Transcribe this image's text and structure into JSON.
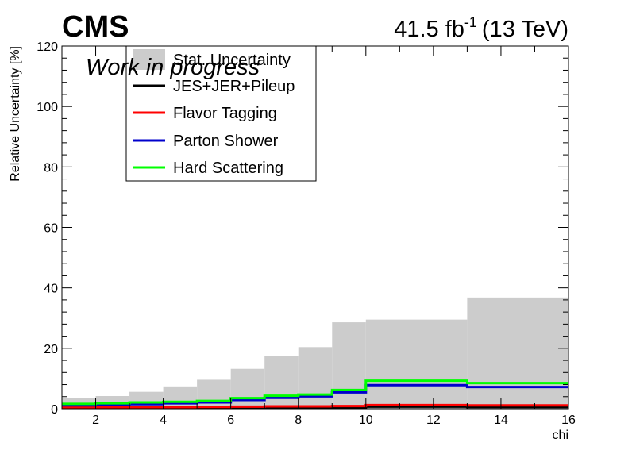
{
  "header": {
    "experiment": "CMS",
    "lumi_value": "41.5 fb",
    "lumi_exp": "-1",
    "energy": "(13 TeV)",
    "status": "Work in progress"
  },
  "legend": {
    "items": [
      {
        "label": "Stat. Uncertainty",
        "color": "#cccccc",
        "kind": "box"
      },
      {
        "label": "JES+JER+Pileup",
        "color": "#000000",
        "kind": "line"
      },
      {
        "label": "Flavor Tagging",
        "color": "#ff0000",
        "kind": "line"
      },
      {
        "label": "Parton Shower",
        "color": "#0000cc",
        "kind": "line"
      },
      {
        "label": "Hard Scattering",
        "color": "#00ff00",
        "kind": "line"
      }
    ]
  },
  "chart_data": {
    "type": "area",
    "xlabel": "chi",
    "ylabel": "Relative Uncertainty [%]",
    "xlim": [
      1,
      16
    ],
    "ylim": [
      0,
      120
    ],
    "x_ticks": [
      2,
      4,
      6,
      8,
      10,
      12,
      14,
      16
    ],
    "y_ticks": [
      0,
      20,
      40,
      60,
      80,
      100,
      120
    ],
    "bin_edges": [
      1,
      2,
      3,
      4,
      5,
      6,
      7,
      8,
      9,
      10,
      13,
      16
    ],
    "series": [
      {
        "name": "Stat. Uncertainty",
        "style": "filled-histogram",
        "color": "#cccccc",
        "values": [
          3.5,
          4.2,
          5.6,
          7.4,
          9.6,
          13.2,
          17.5,
          20.4,
          28.6,
          29.5,
          36.8
        ]
      },
      {
        "name": "JES+JER+Pileup",
        "style": "step",
        "color": "#000000",
        "values": [
          0.3,
          0.3,
          0.3,
          0.3,
          0.3,
          0.4,
          0.4,
          0.4,
          0.5,
          0.7,
          0.6
        ]
      },
      {
        "name": "Flavor Tagging",
        "style": "step",
        "color": "#ff0000",
        "values": [
          0.4,
          0.4,
          0.5,
          0.5,
          0.6,
          0.7,
          0.8,
          0.8,
          0.9,
          1.2,
          1.1
        ]
      },
      {
        "name": "Parton Shower",
        "style": "step",
        "color": "#0000cc",
        "values": [
          1.1,
          1.3,
          1.5,
          1.8,
          2.1,
          2.9,
          3.6,
          4.1,
          5.4,
          7.8,
          7.2
        ]
      },
      {
        "name": "Hard Scattering",
        "style": "step",
        "color": "#00ff00",
        "values": [
          1.6,
          1.8,
          2.1,
          2.3,
          2.6,
          3.5,
          4.3,
          4.7,
          6.2,
          9.3,
          8.5
        ]
      }
    ]
  }
}
